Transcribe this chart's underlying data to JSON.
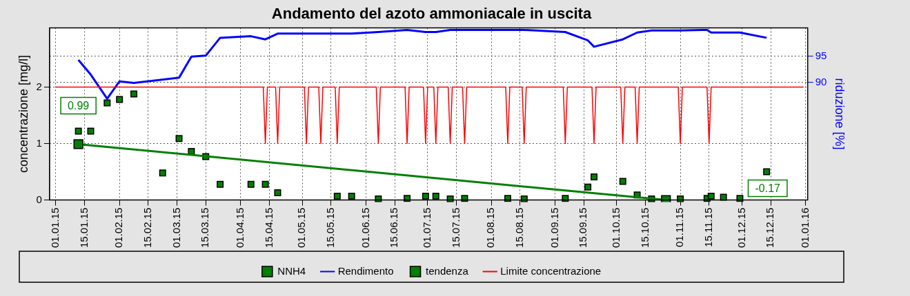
{
  "chart_data": {
    "type": "line",
    "title": "Andamento del azoto ammoniacale in uscita",
    "ylabel": "concentrazione [mg/l]",
    "y2label": "riduzione [%]",
    "xlim": [
      "2014-12-29",
      "2016-01-02"
    ],
    "xticks": [
      {
        "value": "2015-01-01",
        "label": "01.01.15"
      },
      {
        "value": "2015-01-15",
        "label": "15.01.15"
      },
      {
        "value": "2015-02-01",
        "label": "01.02.15"
      },
      {
        "value": "2015-02-15",
        "label": "15.02.15"
      },
      {
        "value": "2015-03-01",
        "label": "01.03.15"
      },
      {
        "value": "2015-03-15",
        "label": "15.03.15"
      },
      {
        "value": "2015-04-01",
        "label": "01.04.15"
      },
      {
        "value": "2015-04-15",
        "label": "15.04.15"
      },
      {
        "value": "2015-05-01",
        "label": "01.05.15"
      },
      {
        "value": "2015-05-15",
        "label": "15.05.15"
      },
      {
        "value": "2015-06-01",
        "label": "01.06.15"
      },
      {
        "value": "2015-06-15",
        "label": "15.06.15"
      },
      {
        "value": "2015-07-01",
        "label": "01.07.15"
      },
      {
        "value": "2015-07-15",
        "label": "15.07.15"
      },
      {
        "value": "2015-08-01",
        "label": "01.08.15"
      },
      {
        "value": "2015-08-15",
        "label": "15.08.15"
      },
      {
        "value": "2015-09-01",
        "label": "01.09.15"
      },
      {
        "value": "2015-09-15",
        "label": "15.09.15"
      },
      {
        "value": "2015-10-01",
        "label": "01.10.15"
      },
      {
        "value": "2015-10-15",
        "label": "15.10.15"
      },
      {
        "value": "2015-11-01",
        "label": "01.11.15"
      },
      {
        "value": "2015-11-15",
        "label": "15.11.15"
      },
      {
        "value": "2015-12-01",
        "label": "01.12.15"
      },
      {
        "value": "2015-12-15",
        "label": "15.12.15"
      },
      {
        "value": "2016-01-01",
        "label": "01.01.16"
      }
    ],
    "ylim": [
      0,
      3.05
    ],
    "yticks": [
      0,
      1,
      2
    ],
    "y2lim": [
      67.6,
      100.4
    ],
    "y2ticks": [
      90,
      95
    ],
    "grid": true,
    "legend": "bottom",
    "series": [
      {
        "name": "NNH4",
        "type": "scatter",
        "marker": "square",
        "color": "#008000",
        "x": [
          "2015-01-12",
          "2015-01-18",
          "2015-01-26",
          "2015-02-01",
          "2015-02-08",
          "2015-02-22",
          "2015-03-02",
          "2015-03-08",
          "2015-03-15",
          "2015-03-22",
          "2015-04-06",
          "2015-04-13",
          "2015-04-19",
          "2015-05-18",
          "2015-05-25",
          "2015-06-07",
          "2015-06-21",
          "2015-06-30",
          "2015-07-05",
          "2015-07-12",
          "2015-07-19",
          "2015-08-09",
          "2015-08-17",
          "2015-09-06",
          "2015-09-17",
          "2015-09-20",
          "2015-10-04",
          "2015-10-11",
          "2015-10-18",
          "2015-11-01",
          "2015-11-14",
          "2015-11-16",
          "2015-11-22",
          "2015-11-30",
          "2015-12-13"
        ],
        "values": [
          1.22,
          1.22,
          1.72,
          1.78,
          1.88,
          0.48,
          1.09,
          0.86,
          0.77,
          0.28,
          0.28,
          0.28,
          0.13,
          0.07,
          0.07,
          0.02,
          0.03,
          0.07,
          0.07,
          0.02,
          0.03,
          0.03,
          0.02,
          0.03,
          0.23,
          0.41,
          0.33,
          0.09,
          0.02,
          0.02,
          0.03,
          0.07,
          0.05,
          0.03,
          0.5
        ]
      },
      {
        "name": "Rendimento",
        "type": "line",
        "marker": "none",
        "axis": "y2",
        "color": "#0000ff",
        "x": [
          "2015-01-12",
          "2015-01-18",
          "2015-01-26",
          "2015-02-01",
          "2015-02-08",
          "2015-03-02",
          "2015-03-08",
          "2015-03-15",
          "2015-03-22",
          "2015-04-06",
          "2015-04-13",
          "2015-04-19",
          "2015-05-18",
          "2015-05-25",
          "2015-06-07",
          "2015-06-21",
          "2015-06-30",
          "2015-07-05",
          "2015-07-12",
          "2015-07-19",
          "2015-08-09",
          "2015-08-17",
          "2015-09-06",
          "2015-09-17",
          "2015-09-20",
          "2015-10-04",
          "2015-10-11",
          "2015-10-18",
          "2015-11-01",
          "2015-11-14",
          "2015-11-16",
          "2015-11-22",
          "2015-11-30",
          "2015-12-13"
        ],
        "values": [
          94.3,
          91.5,
          86.9,
          90.2,
          89.9,
          90.9,
          94.9,
          95.1,
          98.5,
          98.8,
          98.2,
          99.3,
          99.3,
          99.3,
          99.6,
          100,
          99.6,
          99.6,
          100,
          100,
          100,
          100,
          99.6,
          98.0,
          96.8,
          98.2,
          99.5,
          99.9,
          99.9,
          100,
          99.5,
          99.5,
          99.5,
          98.5
        ]
      },
      {
        "name": "tendenza",
        "type": "line",
        "marker": "square",
        "color": "#008000",
        "x": [
          "2015-01-12",
          "2015-10-25"
        ],
        "values": [
          0.99,
          0
        ]
      },
      {
        "name": "Limite concentrazione",
        "type": "line",
        "marker": "none",
        "color": "#ff0000",
        "x": [
          "2015-01-01",
          "2015-04-12",
          "2015-04-13",
          "2015-04-14",
          "2015-04-18",
          "2015-04-19",
          "2015-04-20",
          "2015-05-02",
          "2015-05-03",
          "2015-05-04",
          "2015-05-09",
          "2015-05-10",
          "2015-05-11",
          "2015-05-17",
          "2015-05-18",
          "2015-05-19",
          "2015-06-06",
          "2015-06-07",
          "2015-06-08",
          "2015-06-20",
          "2015-06-21",
          "2015-06-22",
          "2015-06-29",
          "2015-06-30",
          "2015-07-01",
          "2015-07-04",
          "2015-07-05",
          "2015-07-06",
          "2015-07-11",
          "2015-07-12",
          "2015-07-13",
          "2015-07-18",
          "2015-07-19",
          "2015-07-20",
          "2015-08-08",
          "2015-08-09",
          "2015-08-10",
          "2015-08-16",
          "2015-08-17",
          "2015-08-18",
          "2015-09-05",
          "2015-09-06",
          "2015-09-07",
          "2015-09-19",
          "2015-09-20",
          "2015-09-21",
          "2015-10-03",
          "2015-10-04",
          "2015-10-05",
          "2015-10-10",
          "2015-10-11",
          "2015-10-12",
          "2015-10-31",
          "2015-11-01",
          "2015-11-02",
          "2015-11-14",
          "2015-11-15",
          "2015-11-16",
          "2015-12-31"
        ],
        "values": [
          2,
          2,
          1,
          2,
          2,
          1,
          2,
          2,
          1,
          2,
          2,
          1,
          2,
          2,
          1,
          2,
          2,
          1,
          2,
          2,
          1,
          2,
          2,
          1,
          2,
          2,
          1,
          2,
          2,
          1,
          2,
          2,
          1,
          2,
          2,
          1,
          2,
          2,
          1,
          2,
          2,
          1,
          2,
          2,
          1,
          2,
          2,
          1,
          2,
          2,
          1,
          2,
          2,
          1,
          2,
          2,
          1,
          2,
          2
        ]
      }
    ],
    "annotations": [
      {
        "text": "0.99",
        "x": "2015-01-12",
        "y": 0.99
      },
      "-0.17"
    ]
  }
}
